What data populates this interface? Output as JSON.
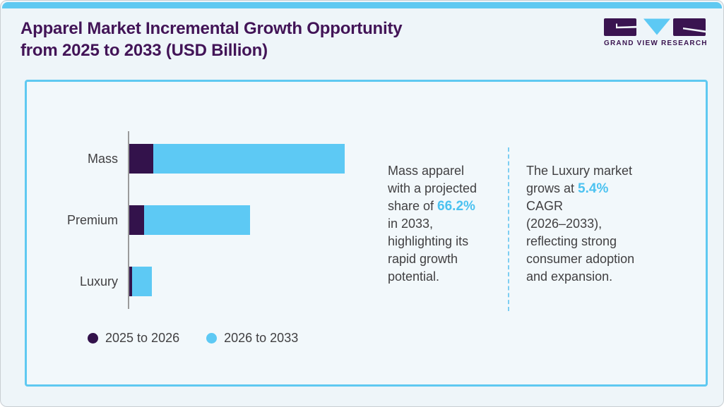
{
  "header": {
    "title": "Apparel Market Incremental Growth Opportunity\nfrom 2025 to 2033 (USD Billion)",
    "logo_text": "GRAND VIEW RESEARCH"
  },
  "chart_data": {
    "type": "bar",
    "orientation": "horizontal",
    "stacked": true,
    "title": "Apparel Market Incremental Growth Opportunity from 2025 to 2033 (USD Billion)",
    "categories": [
      "Mass",
      "Premium",
      "Luxury"
    ],
    "series": [
      {
        "name": "2025 to 2026",
        "color": "#33124b",
        "values": [
          34,
          21,
          4
        ]
      },
      {
        "name": "2026 to 2033",
        "color": "#5dc9f4",
        "values": [
          271,
          150,
          28
        ]
      }
    ],
    "value_axis_labels_visible": false,
    "value_unit": "relative length (axis unlabeled in figure)",
    "legend_position": "bottom-left",
    "grid": false
  },
  "annotations": [
    {
      "before": "Mass apparel\nwith a projected\nshare of ",
      "highlight": "66.2%",
      "after": "\nin 2033,\nhighlighting its\nrapid growth\npotential."
    },
    {
      "before": "The Luxury market\ngrows at ",
      "highlight": "5.4%",
      "after": "\nCAGR\n(2026–2033),\nreflecting strong\nconsumer adoption\nand expansion."
    }
  ],
  "colors": {
    "dark_purple": "#33124b",
    "light_blue": "#5dc9f4",
    "highlight_text": "#4cc2f0",
    "card_border": "#5fc9f1",
    "top_bar": "#5fc9f1",
    "title_text": "#421457",
    "body_text": "#414042",
    "axis_gray": "#9b9b9b",
    "divider_blue": "#7dcef2",
    "page_bg": "#eef5f9",
    "card_bg": "#f2f8fb",
    "logo_purple": "#3a1450"
  }
}
